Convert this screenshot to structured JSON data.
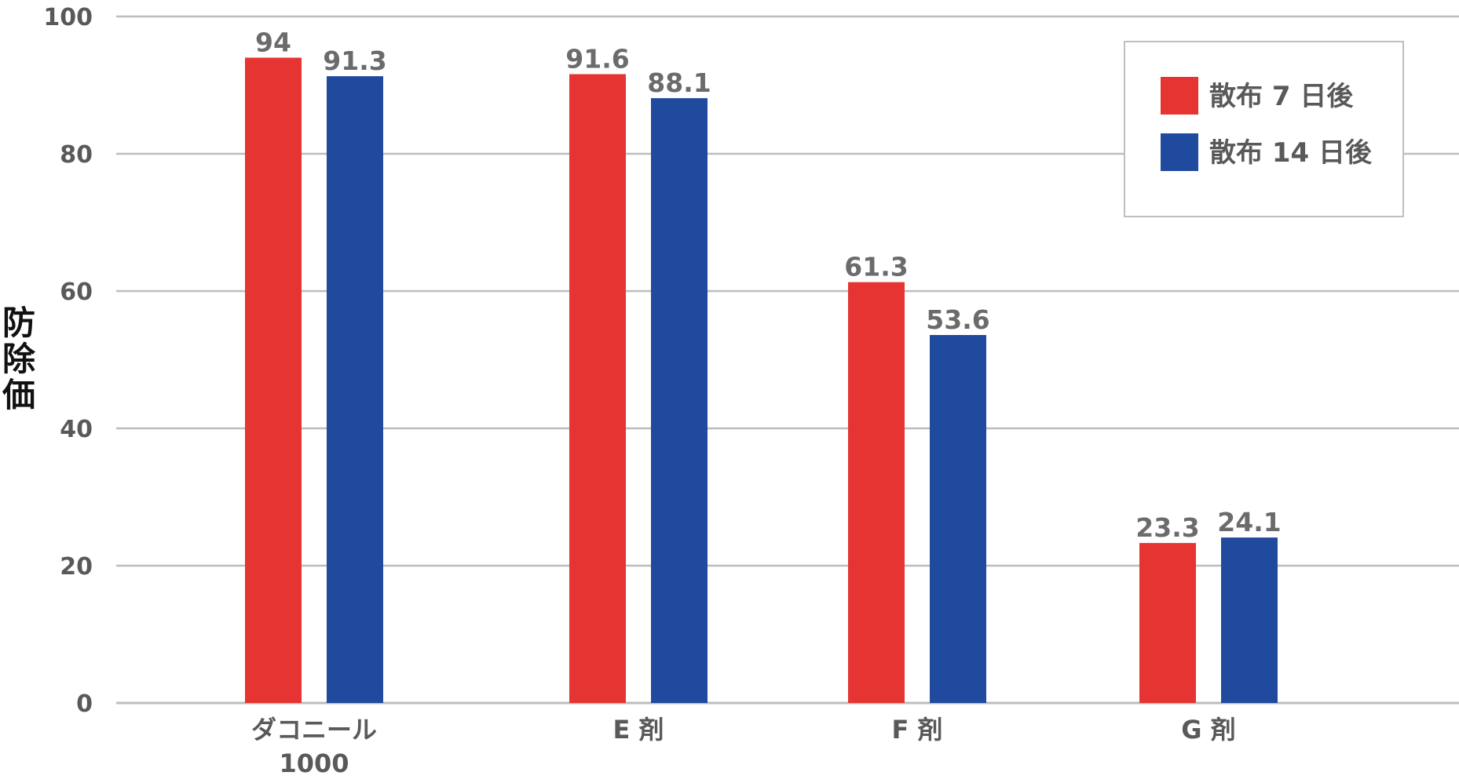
{
  "chart_data": {
    "type": "bar",
    "title": "",
    "xlabel": "",
    "ylabel": "防除価",
    "ylim": [
      0,
      100
    ],
    "yticks": [
      "0",
      "20",
      "40",
      "60",
      "80",
      "100"
    ],
    "grid": true,
    "legend_position": "top-right",
    "categories": [
      "ダコニール\n1000",
      "E 剤",
      "F 剤",
      "G 剤"
    ],
    "series": [
      {
        "name": "散布 7 日後",
        "color": "#e53431",
        "values": [
          94,
          91.6,
          61.3,
          23.3
        ],
        "labels": [
          "94",
          "91.6",
          "61.3",
          "23.3"
        ]
      },
      {
        "name": "散布 14 日後",
        "color": "#1f4a9e",
        "values": [
          91.3,
          88.1,
          53.6,
          24.1
        ],
        "labels": [
          "91.3",
          "88.1",
          "53.6",
          "24.1"
        ]
      }
    ]
  }
}
